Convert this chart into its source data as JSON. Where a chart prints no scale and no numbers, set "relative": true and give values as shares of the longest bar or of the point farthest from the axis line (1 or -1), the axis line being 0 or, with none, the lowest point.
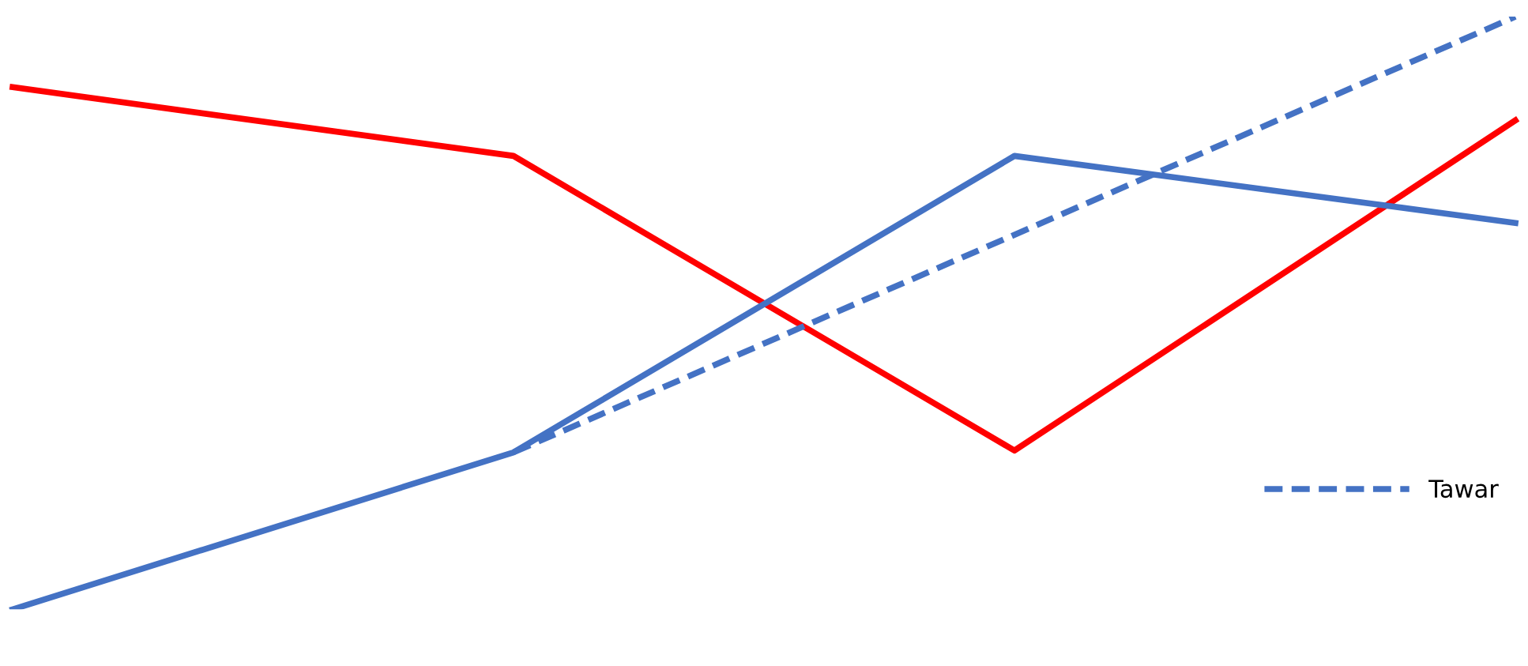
{
  "chart_data": {
    "type": "line",
    "relative": true,
    "categories": [
      null,
      null,
      null,
      null
    ],
    "grid": false,
    "legend": "right",
    "series": [
      {
        "color": "#ff0000",
        "values": [
          0.881,
          0.765,
          0.268,
          0.825
        ]
      },
      {
        "color": "#4472c4",
        "values": [
          0,
          0.265,
          0.765,
          0.652
        ]
      },
      {
        "name": "Tawar",
        "color": "#4472c4",
        "line_style": "dashed",
        "values": [
          null,
          0.265,
          0.632,
          1.0
        ]
      }
    ]
  }
}
